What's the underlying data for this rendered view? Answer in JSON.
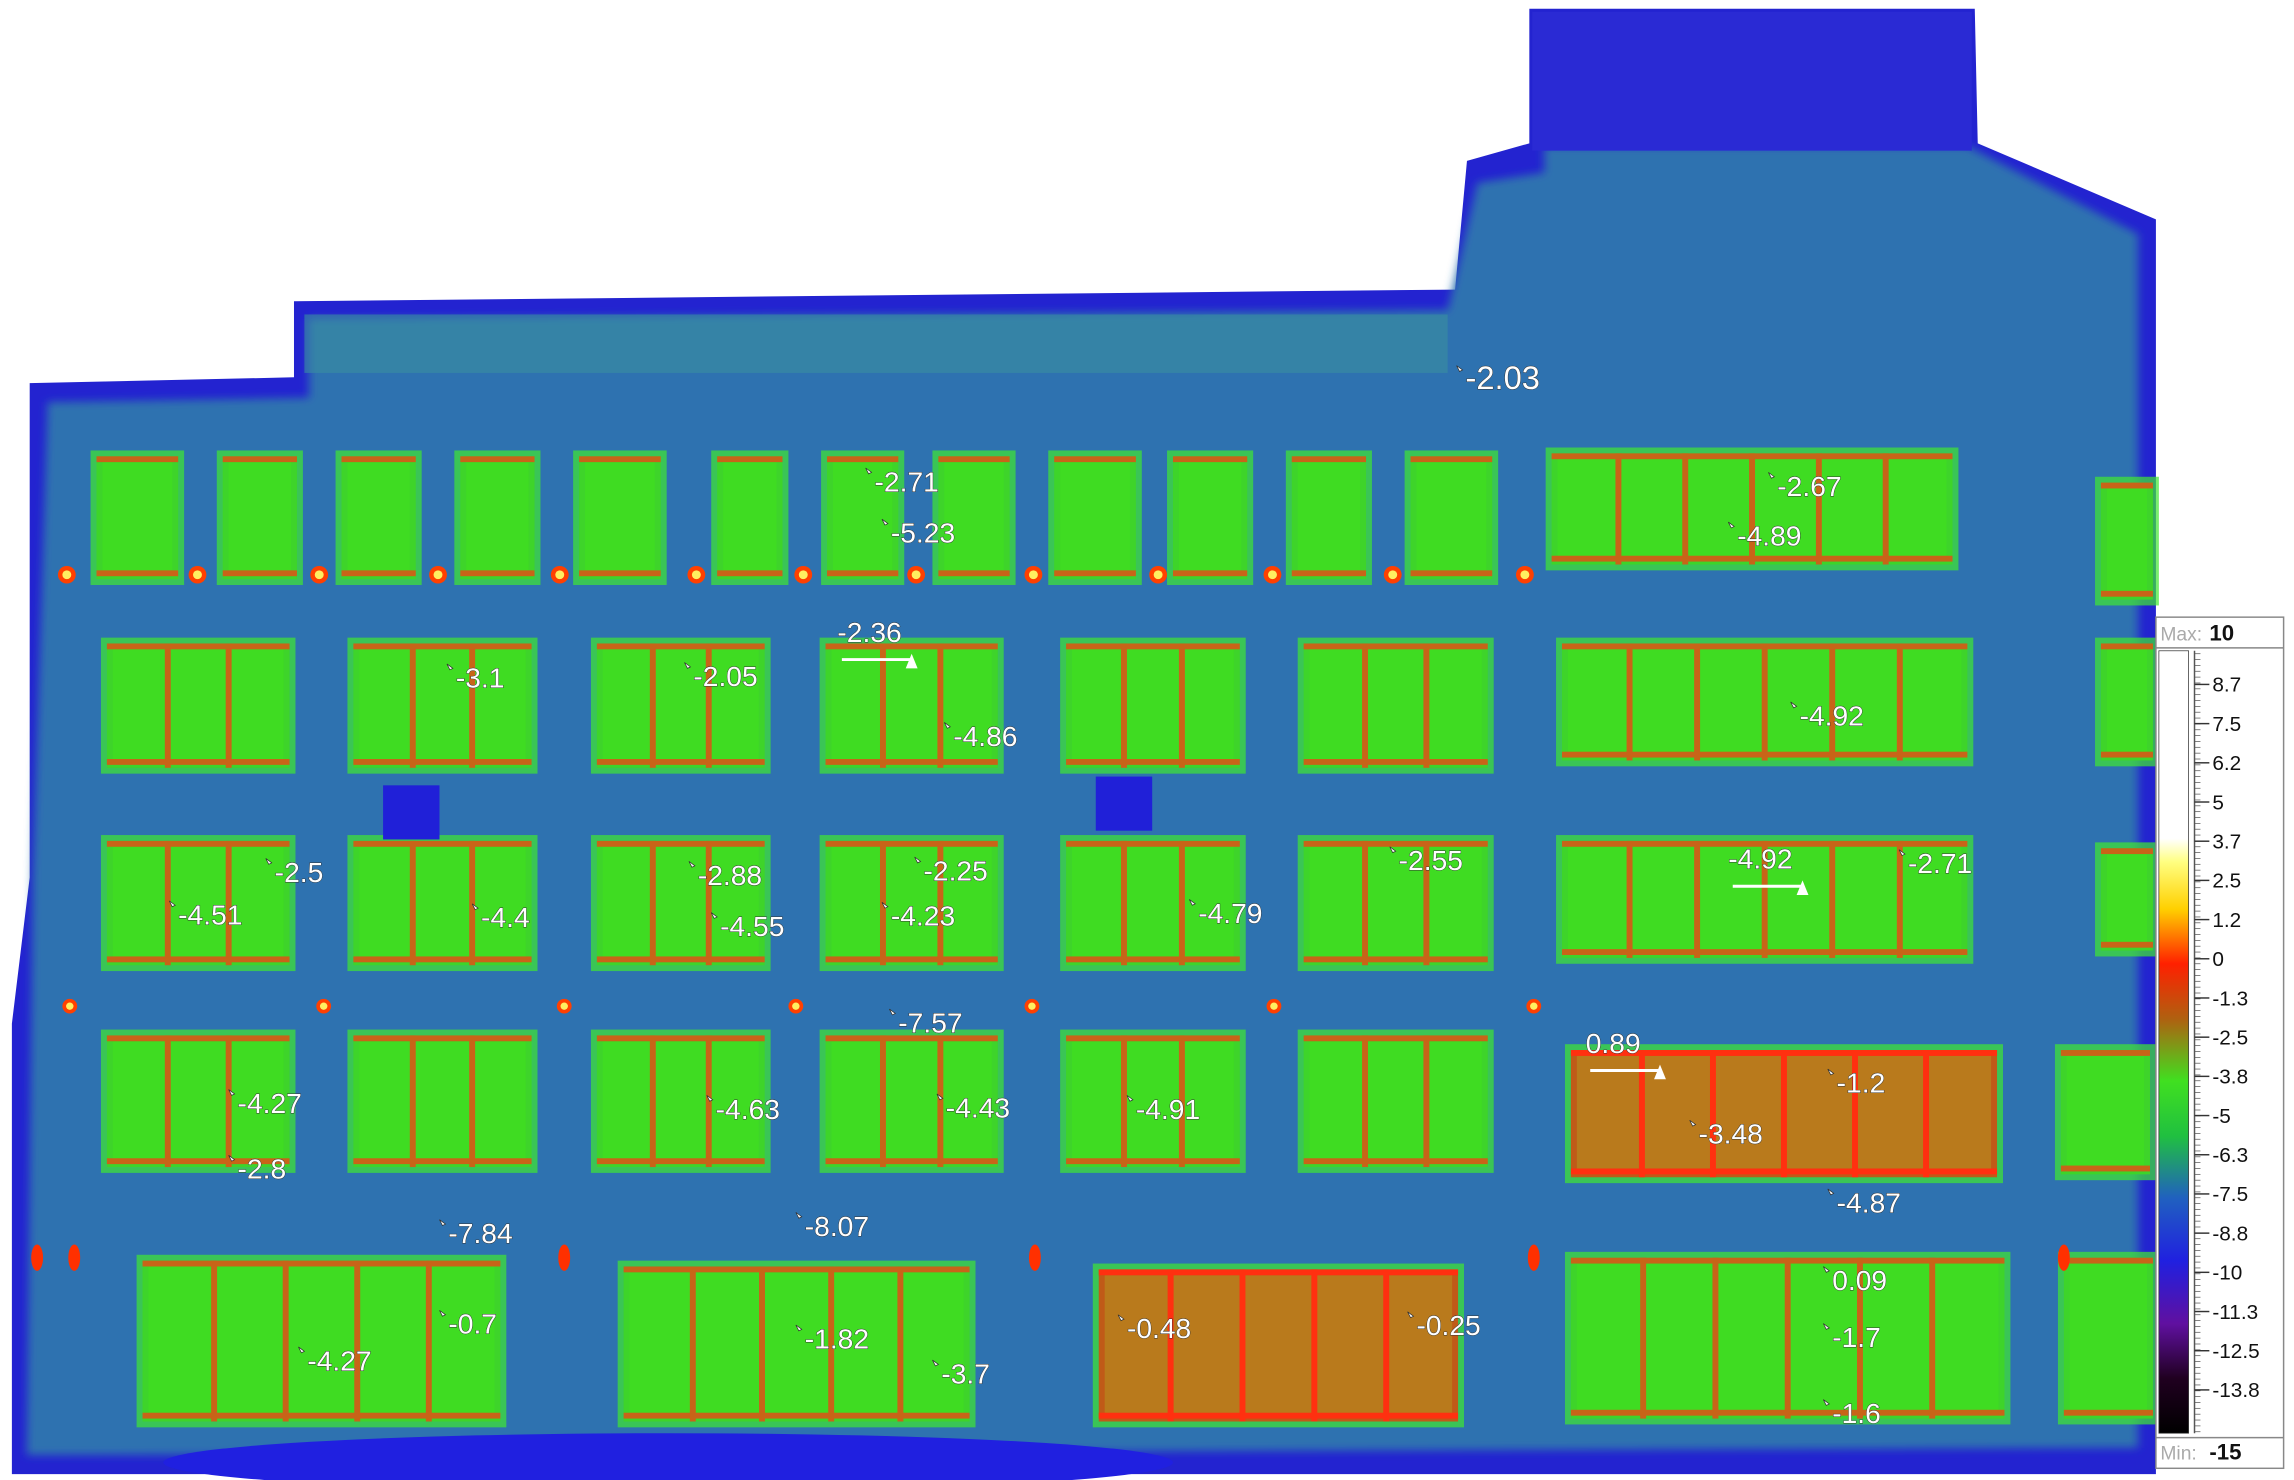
{
  "image": {
    "subject": "thermal infrared image of building facade",
    "palette_colors": {
      "cold": "#1a1ad8",
      "wall": "#2f72b0",
      "glass": "#3ee61e",
      "frame": "#d04a10",
      "hot": "#ffef60"
    }
  },
  "spot_labels": [
    "-2.03",
    "-2.71",
    "-5.23",
    "-2.67",
    "-4.89",
    "-2.36",
    "-3.1",
    "-2.05",
    "-4.86",
    "-4.92",
    "-2.5",
    "-4.51",
    "-4.4",
    "-2.88",
    "-4.55",
    "-2.25",
    "-4.23",
    "-4.79",
    "-2.55",
    "-4.92",
    "-2.71",
    "-7.57",
    "-4.27",
    "-2.8",
    "-4.63",
    "-4.43",
    "-4.91",
    "0.89",
    "-1.2",
    "-3.48",
    "-4.87",
    "-7.84",
    "-8.07",
    "-0.7",
    "-4.27",
    "-1.82",
    "-3.7",
    "-0.48",
    "-0.25",
    "0.09",
    "-1.7",
    "-1.6"
  ],
  "color_scale": {
    "max_label": "Max:",
    "max": "10",
    "min_label": "Min:",
    "min": "-15",
    "ticks": [
      "8.7",
      "7.5",
      "6.2",
      "5",
      "3.7",
      "2.5",
      "1.2",
      "0",
      "-1.3",
      "-2.5",
      "-3.8",
      "-5",
      "-6.3",
      "-7.5",
      "-8.8",
      "-10",
      "-11.3",
      "-12.5",
      "-13.8"
    ]
  }
}
